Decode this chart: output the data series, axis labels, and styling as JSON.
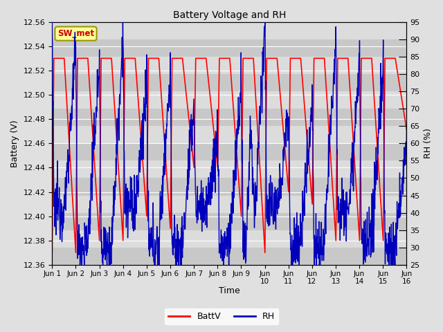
{
  "title": "Battery Voltage and RH",
  "xlabel": "Time",
  "ylabel_left": "Battery (V)",
  "ylabel_right": "RH (%)",
  "annotation": "SW_met",
  "ylim_left": [
    12.36,
    12.56
  ],
  "ylim_right": [
    25,
    95
  ],
  "yticks_left": [
    12.36,
    12.38,
    12.4,
    12.42,
    12.44,
    12.46,
    12.48,
    12.5,
    12.52,
    12.54,
    12.56
  ],
  "yticks_right": [
    25,
    30,
    35,
    40,
    45,
    50,
    55,
    60,
    65,
    70,
    75,
    80,
    85,
    90,
    95
  ],
  "xtick_labels": [
    "Jun 1",
    "Jun 2",
    "Jun 3",
    "Jun 4",
    "Jun 5",
    "Jun 6",
    "Jun 7",
    "Jun 8",
    "Jun 9",
    "Jun\n10",
    "Jun\n11",
    "Jun\n12",
    "Jun\n13",
    "Jun\n14",
    "Jun\n15",
    "Jun\n16"
  ],
  "color_battv": "#ff0000",
  "color_rh": "#0000bb",
  "legend_labels": [
    "BattV",
    "RH"
  ],
  "background_color": "#e0e0e0",
  "plot_bg_color_light": "#dcdcdc",
  "plot_bg_color_dark": "#c8c8c8",
  "grid_color": "#ffffff",
  "annotation_bg": "#ffff99",
  "annotation_border": "#999900",
  "annotation_text_color": "#cc0000",
  "n_days": 15,
  "pts_per_day": 96,
  "seed": 12345
}
